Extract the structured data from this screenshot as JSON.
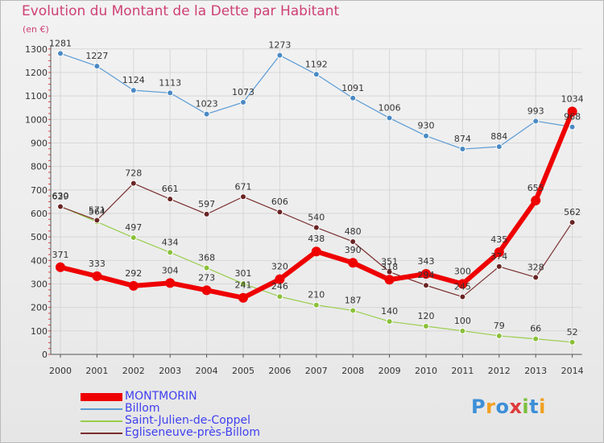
{
  "title": "Evolution du Montant de la Dette par Habitant",
  "unit_label": "(en €)",
  "brand": {
    "letters": [
      "P",
      "r",
      "o",
      "x",
      "i",
      "t",
      "i"
    ],
    "colors": [
      "#3d8fd8",
      "#f0a020",
      "#3d8fd8",
      "#e03a3a",
      "#7cbf3a",
      "#3d8fd8",
      "#f0a020"
    ]
  },
  "chart_data": {
    "type": "line",
    "title": "Evolution du Montant de la Dette par Habitant",
    "ylabel": "(en €)",
    "xlabel": "",
    "ylim": [
      0,
      1300
    ],
    "yticks": [
      "0",
      "100",
      "200",
      "300",
      "400",
      "500",
      "600",
      "700",
      "800",
      "900",
      "1000",
      "1100",
      "1200",
      "1300"
    ],
    "ytick_values": [
      0,
      100,
      200,
      300,
      400,
      500,
      600,
      700,
      800,
      900,
      1000,
      1100,
      1200,
      1300
    ],
    "x": [
      "2000",
      "2001",
      "2002",
      "2003",
      "2004",
      "2005",
      "2006",
      "2007",
      "2008",
      "2009",
      "2010",
      "2011",
      "2012",
      "2013",
      "2014"
    ],
    "grid": true,
    "legend_position": "bottom-left",
    "series": [
      {
        "name": "MONTMORIN",
        "color": "#ee0000",
        "values": [
          371,
          333,
          292,
          304,
          273,
          241,
          320,
          438,
          390,
          318,
          343,
          300,
          435,
          655,
          1034
        ],
        "labels": [
          "371",
          "333",
          "292",
          "304",
          "273",
          "241",
          "320",
          "438",
          "390",
          "318",
          "343",
          "300",
          "435",
          "655",
          "1034"
        ]
      },
      {
        "name": "Billom",
        "color": "#5b9bd5",
        "values": [
          1281,
          1227,
          1124,
          1113,
          1023,
          1073,
          1273,
          1192,
          1091,
          1006,
          930,
          874,
          884,
          993,
          968
        ],
        "labels": [
          "1281",
          "1227",
          "1124",
          "1113",
          "1023",
          "1073",
          "1273",
          "1192",
          "1091",
          "1006",
          "930",
          "874",
          "884",
          "993",
          "968"
        ]
      },
      {
        "name": "Saint-Julien-de-Coppel",
        "color": "#9acd4d",
        "values": [
          630,
          564,
          497,
          434,
          368,
          301,
          246,
          210,
          187,
          140,
          120,
          100,
          79,
          66,
          52
        ],
        "labels": [
          "630",
          "564",
          "497",
          "434",
          "368",
          "301",
          "246",
          "210",
          "187",
          "140",
          "120",
          "100",
          "79",
          "66",
          "52"
        ]
      },
      {
        "name": "Egliseneuve-près-Billom",
        "color": "#7b2f2f",
        "values": [
          629,
          571,
          728,
          661,
          597,
          671,
          606,
          540,
          480,
          351,
          294,
          245,
          374,
          328,
          562
        ],
        "labels": [
          "629",
          "571",
          "728",
          "661",
          "597",
          "671",
          "606",
          "540",
          "480",
          "351",
          "294",
          "245",
          "374",
          "328",
          "562"
        ]
      }
    ]
  }
}
